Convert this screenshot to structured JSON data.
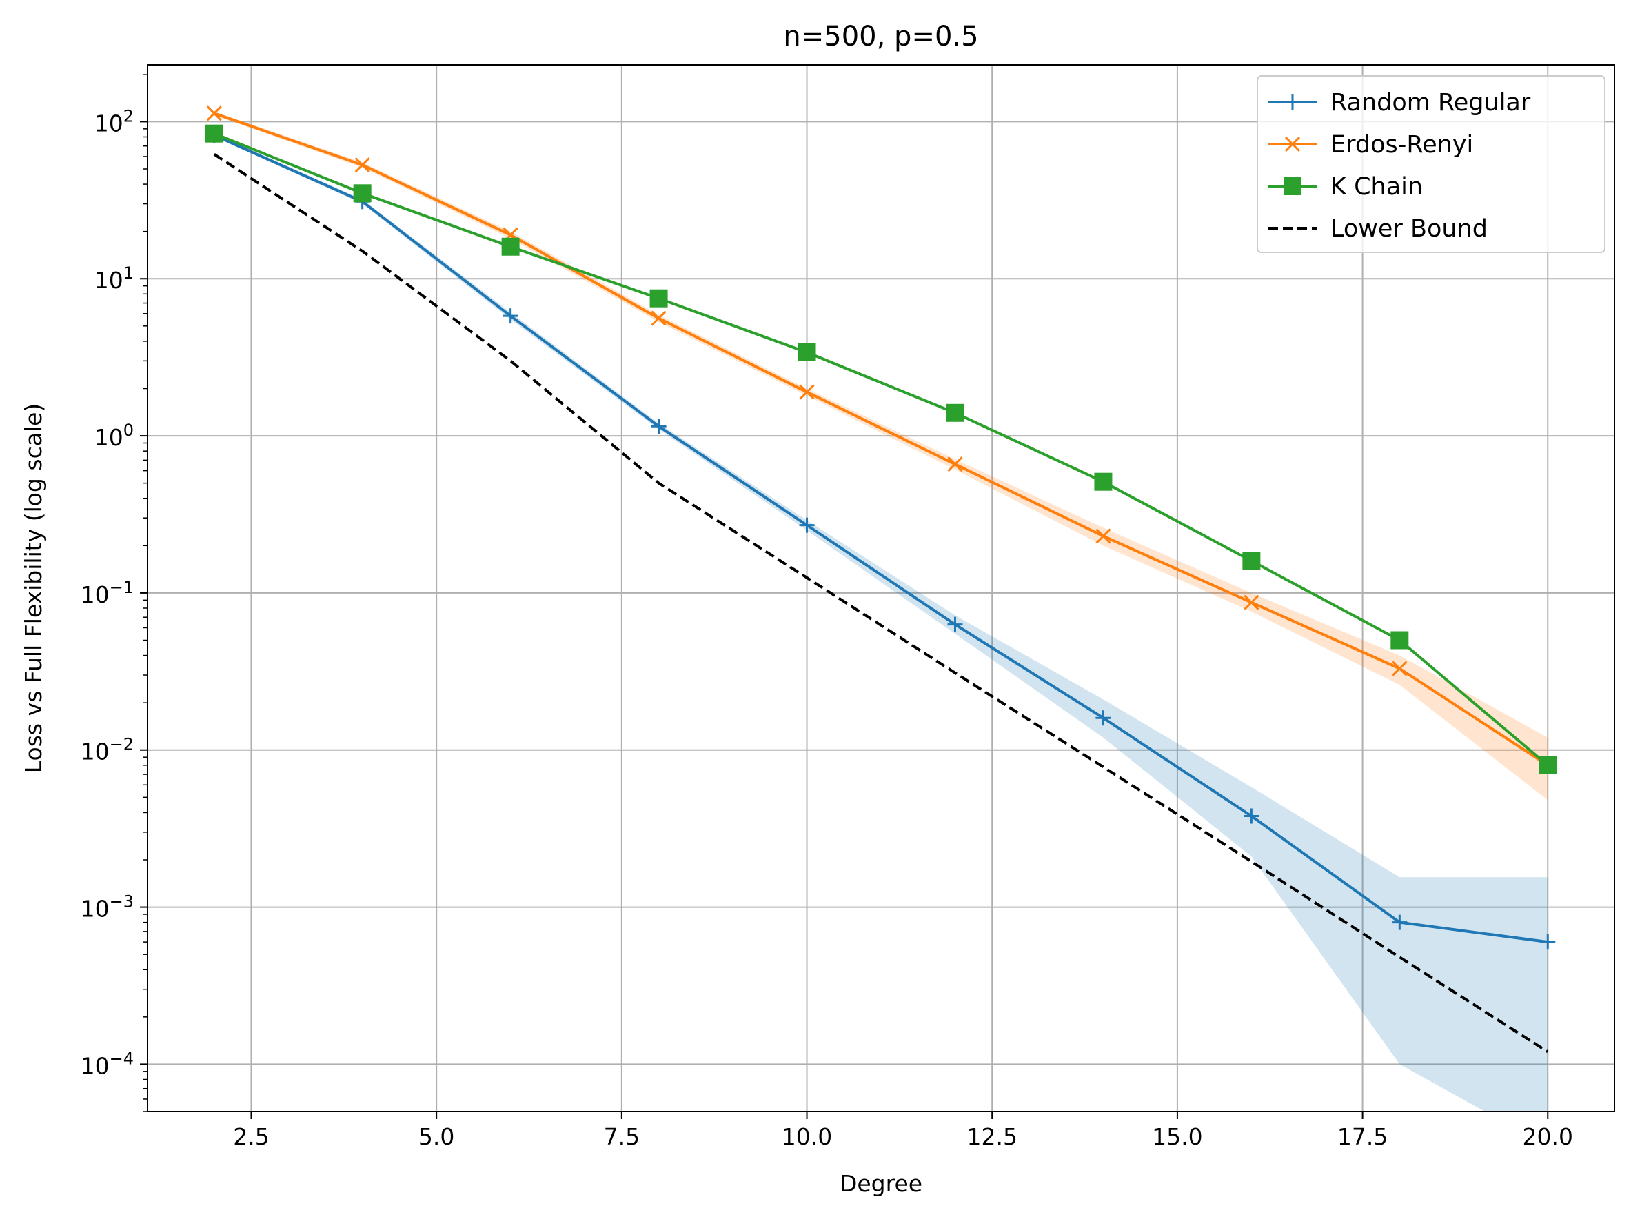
{
  "chart_data": {
    "type": "line",
    "title": "n=500, p=0.5",
    "xlabel": "Degree",
    "ylabel": "Loss vs Full Flexibility (log scale)",
    "yscale": "log",
    "xlim": [
      1.1,
      20.9
    ],
    "ylim": [
      5e-05,
      230
    ],
    "xticks": [
      2.5,
      5.0,
      7.5,
      10.0,
      12.5,
      15.0,
      17.5,
      20.0
    ],
    "xtick_labels": [
      "2.5",
      "5.0",
      "7.5",
      "10.0",
      "12.5",
      "15.0",
      "17.5",
      "20.0"
    ],
    "yticks": [
      0.0001,
      0.001,
      0.01,
      0.1,
      1,
      10,
      100
    ],
    "ytick_exponents": [
      "−4",
      "−3",
      "−2",
      "−1",
      "0",
      "1",
      "2"
    ],
    "ytick_base": "10",
    "grid": true,
    "legend_position": "top-right",
    "x": [
      2,
      4,
      6,
      8,
      10,
      12,
      14,
      16,
      18,
      20
    ],
    "series": [
      {
        "name": "Random Regular",
        "color": "#1f77b4",
        "marker": "plus",
        "linestyle": "solid",
        "values": [
          82,
          31,
          5.8,
          1.15,
          0.27,
          0.063,
          0.016,
          0.0038,
          0.0008,
          0.0006
        ],
        "band_upper": [
          84,
          32,
          6.1,
          1.2,
          0.29,
          0.072,
          0.021,
          0.0058,
          0.00155,
          0.00155
        ],
        "band_lower": [
          80,
          30,
          5.5,
          1.1,
          0.25,
          0.055,
          0.012,
          0.0021,
          0.0001,
          3e-05
        ]
      },
      {
        "name": "Erdos-Renyi",
        "color": "#ff7f0e",
        "marker": "x",
        "linestyle": "solid",
        "values": [
          113,
          53,
          19,
          5.6,
          1.9,
          0.66,
          0.23,
          0.087,
          0.033,
          0.008
        ],
        "band_upper": [
          116,
          55,
          20,
          5.9,
          2.0,
          0.71,
          0.26,
          0.1,
          0.04,
          0.012
        ],
        "band_lower": [
          110,
          51,
          18,
          5.3,
          1.8,
          0.61,
          0.2,
          0.076,
          0.026,
          0.0048
        ]
      },
      {
        "name": "K Chain",
        "color": "#2ca02c",
        "marker": "square",
        "linestyle": "solid",
        "values": [
          84,
          35,
          16,
          7.5,
          3.4,
          1.4,
          0.51,
          0.16,
          0.05,
          0.008
        ]
      },
      {
        "name": "Lower Bound",
        "color": "#000000",
        "marker": "none",
        "linestyle": "dashed",
        "values": [
          62,
          15,
          3.0,
          0.5,
          0.125,
          0.031,
          0.0078,
          0.00195,
          0.00048,
          0.00012
        ]
      }
    ]
  }
}
